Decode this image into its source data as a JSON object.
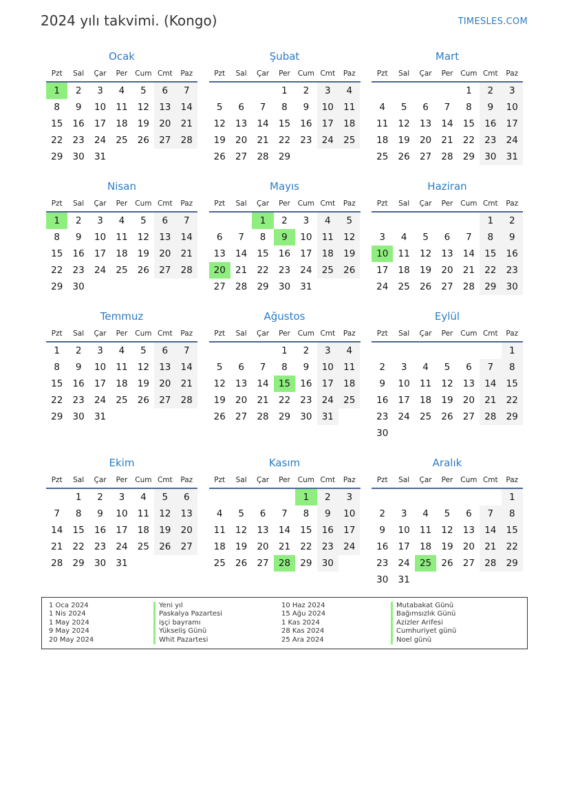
{
  "title": "2024 yılı takvimi. (Kongo)",
  "brand": "TIMESLES.COM",
  "weekdays": [
    "Pzt",
    "Sal",
    "Çar",
    "Per",
    "Cum",
    "Cmt",
    "Paz"
  ],
  "colors": {
    "accent": "#2a7bc4",
    "holiday": "#90ee80",
    "weekend": "#f3f3f3"
  },
  "months": [
    {
      "name": "Ocak",
      "offset": 0,
      "days": 31,
      "holidays": [
        1
      ]
    },
    {
      "name": "Şubat",
      "offset": 3,
      "days": 29,
      "holidays": []
    },
    {
      "name": "Mart",
      "offset": 4,
      "days": 31,
      "holidays": []
    },
    {
      "name": "Nisan",
      "offset": 0,
      "days": 30,
      "holidays": [
        1
      ]
    },
    {
      "name": "Mayıs",
      "offset": 2,
      "days": 31,
      "holidays": [
        1,
        9,
        20
      ]
    },
    {
      "name": "Haziran",
      "offset": 5,
      "days": 30,
      "holidays": [
        10
      ]
    },
    {
      "name": "Temmuz",
      "offset": 0,
      "days": 31,
      "holidays": []
    },
    {
      "name": "Ağustos",
      "offset": 3,
      "days": 31,
      "holidays": [
        15
      ]
    },
    {
      "name": "Eylül",
      "offset": 6,
      "days": 30,
      "holidays": []
    },
    {
      "name": "Ekim",
      "offset": 1,
      "days": 31,
      "holidays": []
    },
    {
      "name": "Kasım",
      "offset": 4,
      "days": 30,
      "holidays": [
        1,
        28
      ]
    },
    {
      "name": "Aralık",
      "offset": 6,
      "days": 31,
      "holidays": [
        25
      ]
    }
  ],
  "holidays": [
    {
      "date": "1 Oca 2024",
      "name": "Yeni yıl"
    },
    {
      "date": "1 Nis 2024",
      "name": "Paskalya Pazartesi"
    },
    {
      "date": "1 May 2024",
      "name": "işçi bayramı"
    },
    {
      "date": "9 May 2024",
      "name": "Yükseliş Günü"
    },
    {
      "date": "20 May 2024",
      "name": "Whit Pazartesi"
    },
    {
      "date": "10 Haz 2024",
      "name": "Mutabakat Günü"
    },
    {
      "date": "15 Ağu 2024",
      "name": "Bağımsızlık Günü"
    },
    {
      "date": "1 Kas 2024",
      "name": "Azizler Arifesi"
    },
    {
      "date": "28 Kas 2024",
      "name": "Cumhuriyet günü"
    },
    {
      "date": "25 Ara 2024",
      "name": "Noel günü"
    }
  ]
}
